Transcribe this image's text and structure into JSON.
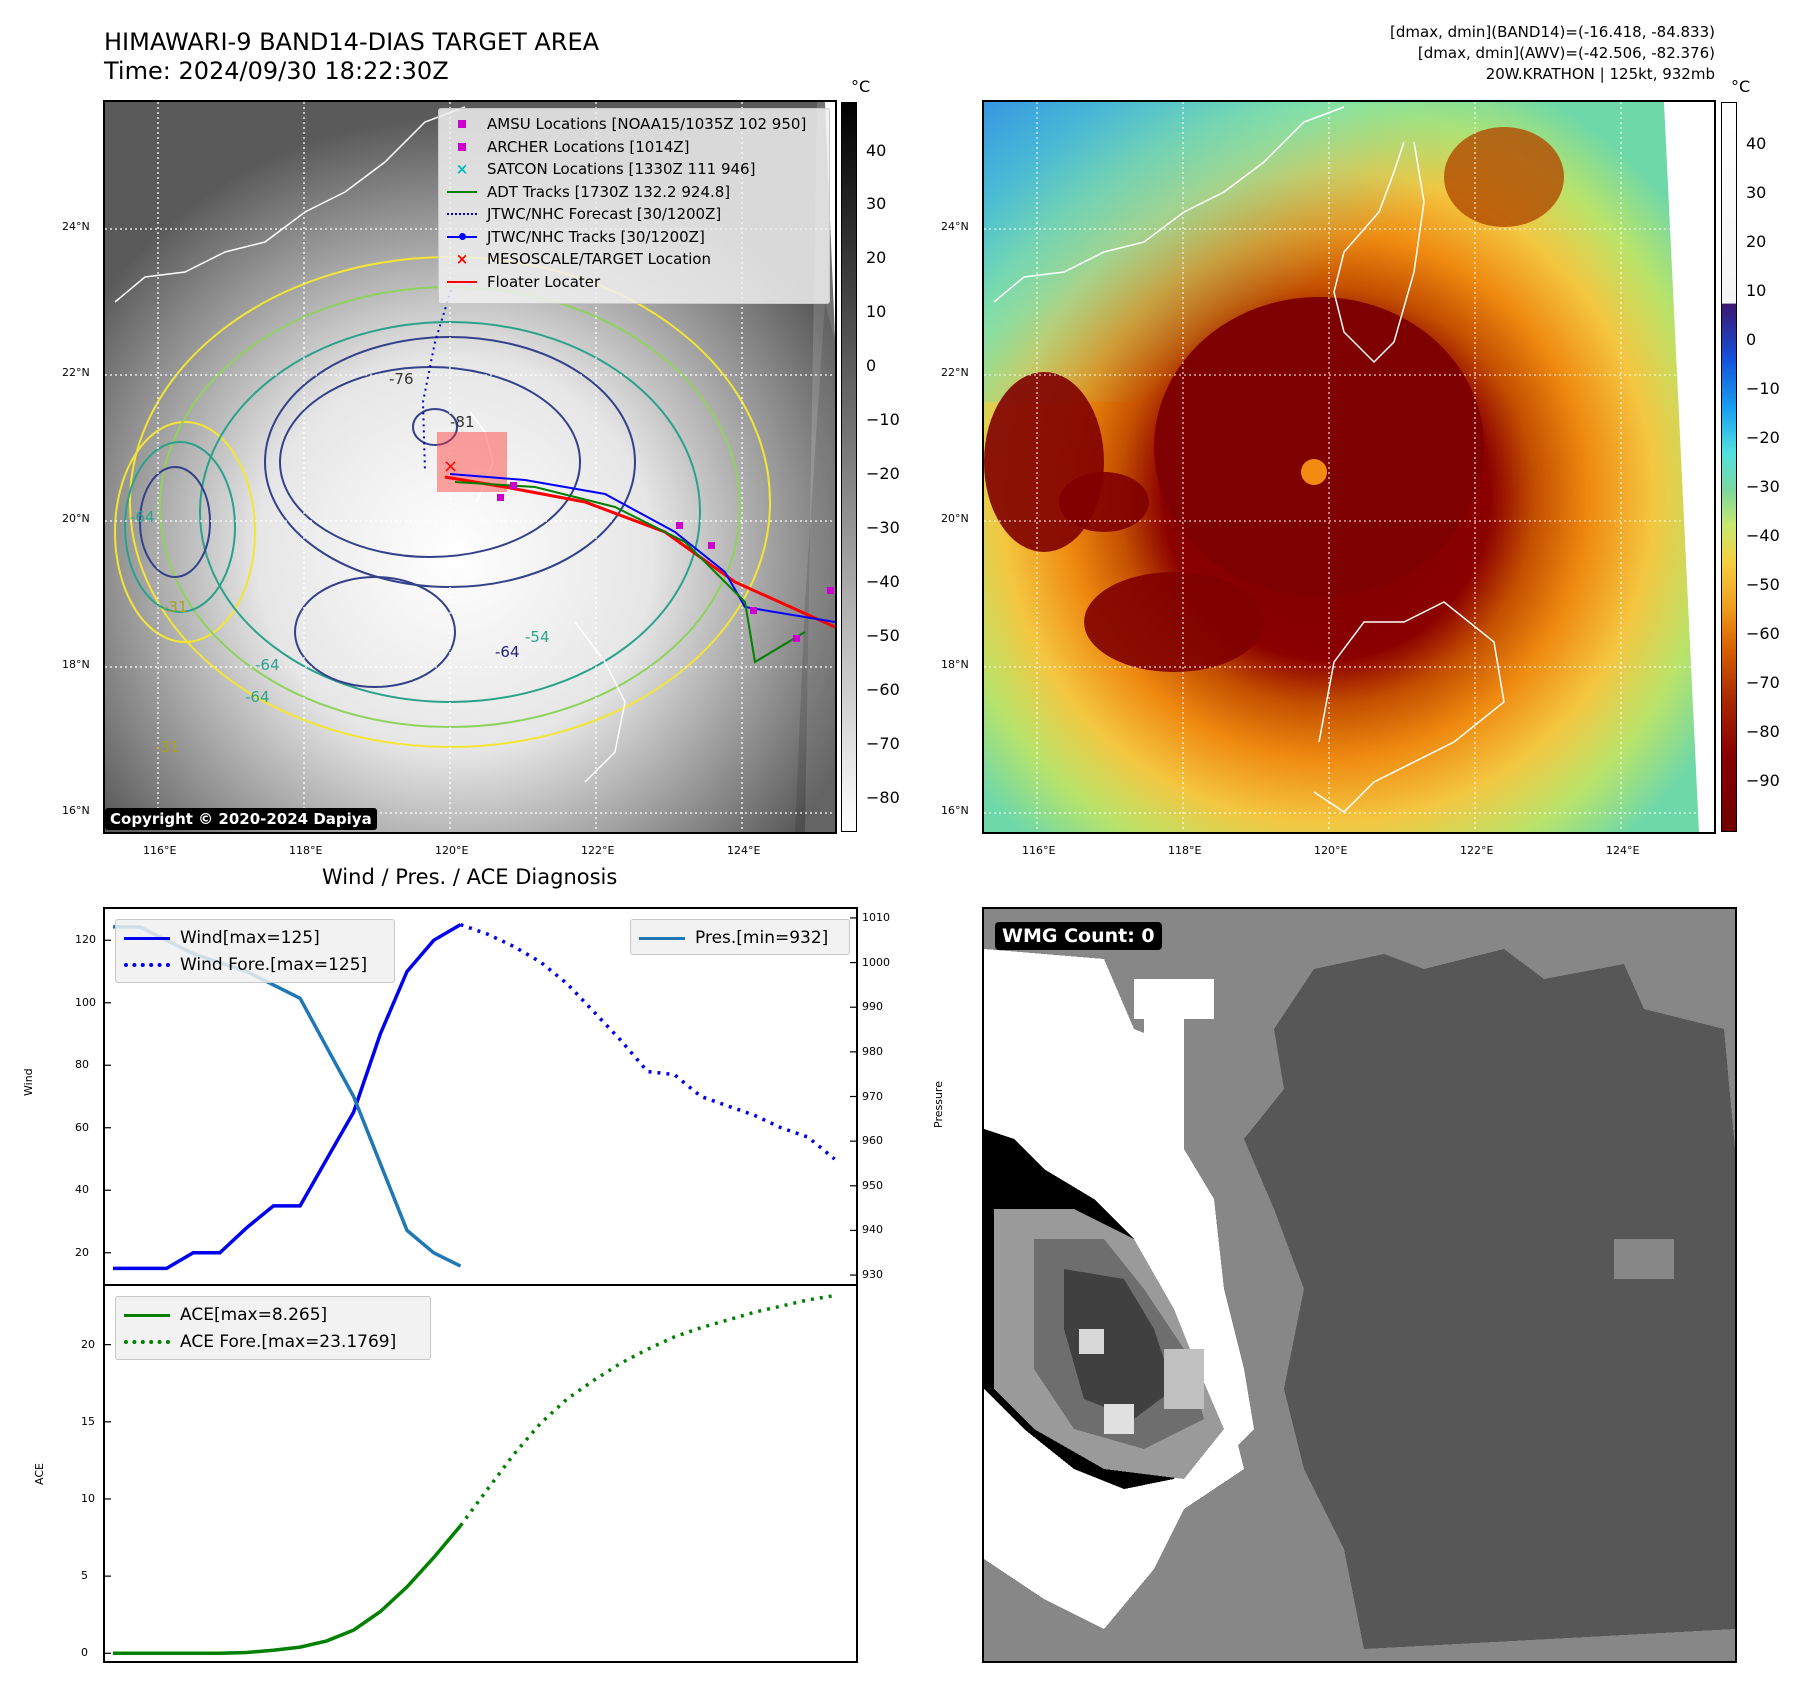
{
  "header": {
    "title_line1": "HIMAWARI-9 BAND14-DIAS TARGET AREA",
    "title_line2": "Time: 2024/09/30 18:22:30Z",
    "info_line1": "[dmax, dmin](BAND14)=(-16.418, -84.833)",
    "info_line2": "[dmax, dmin](AWV)=(-42.506, -82.376)",
    "info_line3": "20W.KRATHON | 125kt, 932mb"
  },
  "map": {
    "lat_labels": [
      "24°N",
      "22°N",
      "20°N",
      "18°N",
      "16°N"
    ],
    "lon_labels": [
      "116°E",
      "118°E",
      "120°E",
      "122°E",
      "124°E"
    ],
    "contour_labels": [
      "-76",
      "-81",
      "-64",
      "-64",
      "-54",
      "-31",
      "-64",
      "-64",
      "-31"
    ],
    "copyright": "Copyright © 2020-2024 Dapiya"
  },
  "legend_map": {
    "items": [
      {
        "label": "AMSU Locations [NOAA15/1035Z 102 950]",
        "color": "#cc00cc",
        "symbol": "square"
      },
      {
        "label": "ARCHER Locations [1014Z]",
        "color": "#cc00cc",
        "symbol": "square"
      },
      {
        "label": "SATCON Locations [1330Z 111 946]",
        "color": "#00bbbb",
        "symbol": "x"
      },
      {
        "label": "ADT Tracks [1730Z 132.2 924.8]",
        "color": "#008000",
        "symbol": "line"
      },
      {
        "label": "JTWC/NHC Forecast [30/1200Z]",
        "color": "#0000cc",
        "symbol": "dotted"
      },
      {
        "label": "JTWC/NHC Tracks [30/1200Z]",
        "color": "#0000ff",
        "symbol": "line-dot"
      },
      {
        "label": "MESOSCALE/TARGET Location",
        "color": "#ff0000",
        "symbol": "x"
      },
      {
        "label": "Floater Locater",
        "color": "#ff0000",
        "symbol": "line"
      }
    ]
  },
  "colorbar_gray": {
    "unit": "°C",
    "ticks": [
      "40",
      "30",
      "20",
      "10",
      "0",
      "−10",
      "−20",
      "−30",
      "−40",
      "−50",
      "−60",
      "−70",
      "−80"
    ]
  },
  "colorbar_color": {
    "unit": "°C",
    "ticks": [
      "40",
      "30",
      "20",
      "10",
      "0",
      "−10",
      "−20",
      "−30",
      "−40",
      "−50",
      "−60",
      "−70",
      "−80",
      "−90"
    ]
  },
  "wmg": {
    "label": "WMG Count: 0"
  },
  "chart_data": [
    {
      "type": "line",
      "title": "Wind / Pres. / ACE Diagnosis",
      "ylabel": "Wind",
      "ylabel_right": "Pressure",
      "ylim": [
        10,
        130
      ],
      "ylim_right": [
        928,
        1012
      ],
      "xlim": [
        -0.3,
        27.8
      ],
      "y_ticks": [
        "120",
        "100",
        "80",
        "60",
        "40",
        "20"
      ],
      "y_ticks_right": [
        "1010",
        "1000",
        "990",
        "980",
        "970",
        "960",
        "950",
        "940",
        "930"
      ],
      "series": [
        {
          "name": "Wind[max=125]",
          "axis": "left",
          "style": "solid",
          "color": "#0000ee",
          "x": [
            0,
            1,
            2,
            3,
            4,
            5,
            6,
            7,
            8,
            9,
            10,
            11,
            12,
            13
          ],
          "values": [
            15,
            15,
            15,
            20,
            20,
            28,
            35,
            35,
            50,
            65,
            90,
            110,
            120,
            125
          ]
        },
        {
          "name": "Wind Fore.[max=125]",
          "axis": "left",
          "style": "dotted",
          "color": "#0000ee",
          "x": [
            13,
            14,
            15,
            16,
            17,
            18,
            19,
            20,
            21,
            22,
            23,
            24,
            25,
            26,
            27
          ],
          "values": [
            125,
            122,
            118,
            113,
            106,
            97,
            88,
            78,
            77,
            70,
            67,
            64,
            60,
            57,
            50
          ]
        },
        {
          "name": "Pres.[min=932]",
          "axis": "right",
          "style": "solid",
          "color": "#1f77b4",
          "x": [
            0,
            1,
            2,
            3,
            4,
            5,
            6,
            7,
            8,
            9,
            10,
            11,
            12,
            13
          ],
          "values": [
            1008,
            1008,
            1005,
            1002,
            1000,
            998,
            995,
            992,
            981,
            970,
            955,
            940,
            935,
            932
          ]
        }
      ]
    },
    {
      "type": "line",
      "ylabel": "ACE",
      "ylim": [
        -0.5,
        23.8
      ],
      "xlim": [
        -0.3,
        27.8
      ],
      "y_ticks": [
        "20",
        "15",
        "10",
        "5",
        "0"
      ],
      "series": [
        {
          "name": "ACE[max=8.265]",
          "style": "solid",
          "color": "#008000",
          "x": [
            0,
            1,
            2,
            3,
            4,
            5,
            6,
            7,
            8,
            9,
            10,
            11,
            12,
            13
          ],
          "values": [
            0,
            0,
            0,
            0,
            0,
            0.05,
            0.2,
            0.4,
            0.8,
            1.5,
            2.7,
            4.3,
            6.2,
            8.265
          ]
        },
        {
          "name": "ACE Fore.[max=23.1769]",
          "style": "dotted",
          "color": "#008000",
          "x": [
            13,
            14,
            15,
            16,
            17,
            18,
            19,
            20,
            21,
            22,
            23,
            24,
            25,
            26,
            27
          ],
          "values": [
            8.265,
            10.6,
            12.9,
            14.9,
            16.5,
            17.7,
            18.8,
            19.7,
            20.5,
            21.1,
            21.6,
            22.1,
            22.5,
            22.9,
            23.1769
          ]
        }
      ]
    }
  ]
}
